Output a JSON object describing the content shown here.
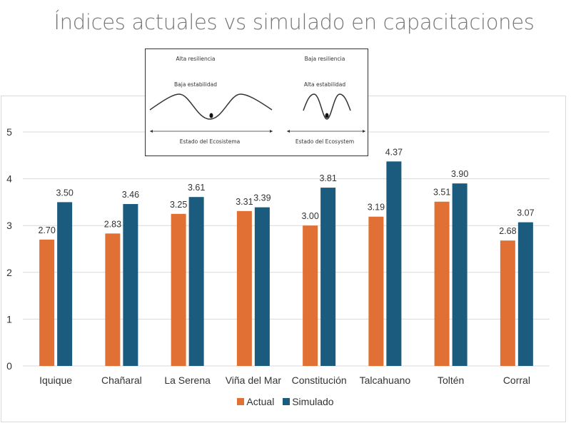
{
  "title": "Índices actuales vs simulado en capacitaciones",
  "inset": {
    "left": {
      "resilience": "Alta resiliencia",
      "stability": "Baja estabilidad",
      "axis_label": "Estado del Ecosistema"
    },
    "right": {
      "resilience": "Baja resiliencia",
      "stability": "Alta estabilidad",
      "axis_label": "Estado del Ecosystem"
    }
  },
  "chart_data": {
    "type": "bar",
    "title": "Índices actuales vs simulado en capacitaciones",
    "xlabel": "",
    "ylabel": "",
    "ylim": [
      0,
      5
    ],
    "yticks": [
      0,
      1,
      2,
      3,
      4,
      5
    ],
    "grid": true,
    "legend_position": "bottom",
    "categories": [
      "Iquique",
      "Chañaral",
      "La Serena",
      "Viña del Mar",
      "Constitución",
      "Talcahuano",
      "Toltén",
      "Corral"
    ],
    "series": [
      {
        "name": "Actual",
        "color": "#E07034",
        "values": [
          2.7,
          2.83,
          3.25,
          3.31,
          3.0,
          3.19,
          3.51,
          2.68
        ]
      },
      {
        "name": "Simulado",
        "color": "#1B5C7E",
        "values": [
          3.5,
          3.46,
          3.61,
          3.39,
          3.81,
          4.37,
          3.9,
          3.07
        ]
      }
    ],
    "data_labels": true,
    "label_format": "0.00"
  }
}
